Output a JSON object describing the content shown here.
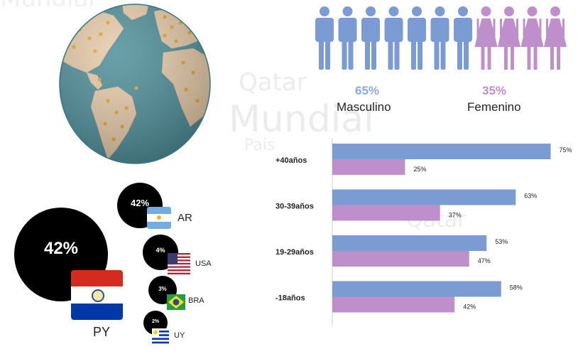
{
  "watermark": [
    "Mundial",
    "Qatar",
    "Mundial",
    "Qatar",
    "Pais"
  ],
  "colors": {
    "male": "#7b9bd3",
    "female": "#bf8fcc",
    "male_text": "#8fa9d8",
    "female_text": "#bf8fcc",
    "ocean": "#4f8f9a",
    "land": "#e6caa8",
    "bubble": "#000000"
  },
  "gender": {
    "male": {
      "percent": "65%",
      "label": "Masculino",
      "icons": 7
    },
    "female": {
      "percent": "35%",
      "label": "Femenino",
      "icons": 4
    }
  },
  "countries": [
    {
      "pct": "42%",
      "code": "PY",
      "flag": "paraguay-flag"
    },
    {
      "pct": "42%",
      "code": "AR",
      "flag": "argentina-flag"
    },
    {
      "pct": "4%",
      "code": "USA",
      "flag": "usa-flag"
    },
    {
      "pct": "3%",
      "code": "BRA",
      "flag": "brazil-flag"
    },
    {
      "pct": "2%",
      "code": "UY",
      "flag": "uruguay-flag"
    }
  ],
  "chart_data": {
    "type": "bar",
    "orientation": "horizontal",
    "categories": [
      "+40años",
      "30-39años",
      "19-29años",
      "-18años"
    ],
    "series": [
      {
        "values": [
          75,
          63,
          53,
          58
        ],
        "labels": [
          "75%",
          "63%",
          "53%",
          "58%"
        ]
      },
      {
        "values": [
          25,
          37,
          47,
          42
        ],
        "labels": [
          "25%",
          "37%",
          "47%",
          "42%"
        ]
      }
    ],
    "xlim": [
      0,
      100
    ],
    "grid": false,
    "legend": "none"
  }
}
